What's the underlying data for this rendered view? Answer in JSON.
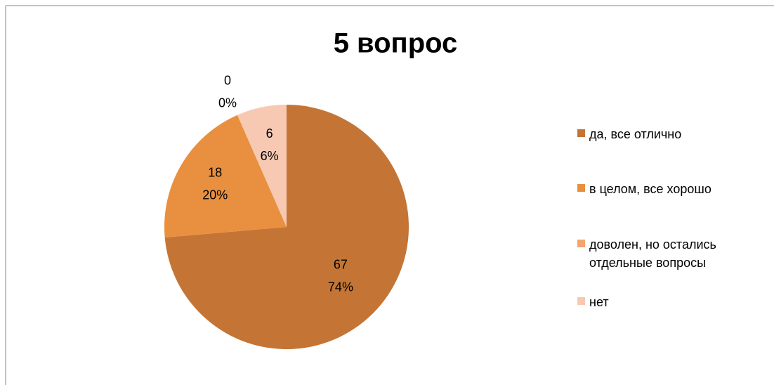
{
  "chart_data": {
    "type": "pie",
    "title": "5 вопрос",
    "categories": [
      "да, все отлично",
      "в целом, все хорошо",
      "доволен, но остались отдельные вопросы",
      "нет"
    ],
    "values": [
      67,
      18,
      0,
      6
    ],
    "percent_labels": [
      "74%",
      "20%",
      "0%",
      "6%"
    ],
    "colors": [
      "#c47535",
      "#e8903f",
      "#f4a46e",
      "#f7c9b3"
    ],
    "legend": "right"
  }
}
